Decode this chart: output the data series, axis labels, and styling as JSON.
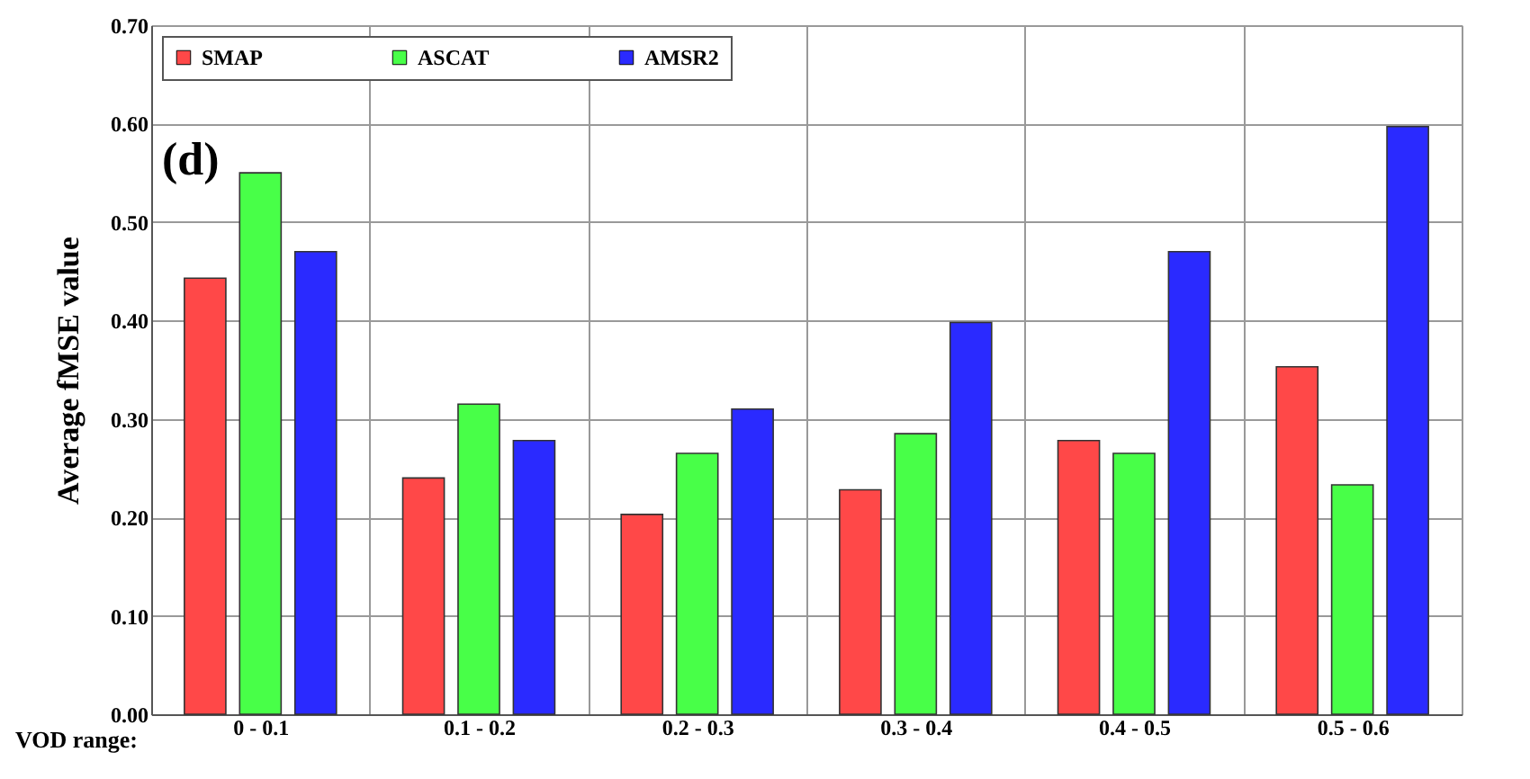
{
  "chart_data": {
    "type": "bar",
    "ylabel": "Average fMSE value",
    "xlabel": "VOD range:",
    "annotations": [
      "(d)"
    ],
    "categories": [
      "0 - 0.1",
      "0.1 - 0.2",
      "0.2 - 0.3",
      "0.3 - 0.4",
      "0.4 - 0.5",
      "0.5 - 0.6"
    ],
    "series": [
      {
        "name": "SMAP",
        "color": "#ff4848",
        "values": [
          0.443,
          0.24,
          0.203,
          0.228,
          0.278,
          0.353
        ]
      },
      {
        "name": "ASCAT",
        "color": "#48ff48",
        "values": [
          0.55,
          0.315,
          0.265,
          0.285,
          0.265,
          0.233
        ]
      },
      {
        "name": "AMSR2",
        "color": "#2a2aff",
        "values": [
          0.47,
          0.278,
          0.31,
          0.398,
          0.47,
          0.597
        ]
      }
    ],
    "ylim": [
      0,
      0.7
    ],
    "yticks": [
      {
        "value": 0,
        "label": "0.00"
      },
      {
        "value": 0.1,
        "label": "0.10"
      },
      {
        "value": 0.2,
        "label": "0.20"
      },
      {
        "value": 0.3,
        "label": "0.30"
      },
      {
        "value": 0.4,
        "label": "0.40"
      },
      {
        "value": 0.5,
        "label": "0.50"
      },
      {
        "value": 0.6,
        "label": "0.60"
      },
      {
        "value": 0.7,
        "label": "0.70"
      }
    ],
    "grid": true,
    "legend": "top left"
  }
}
